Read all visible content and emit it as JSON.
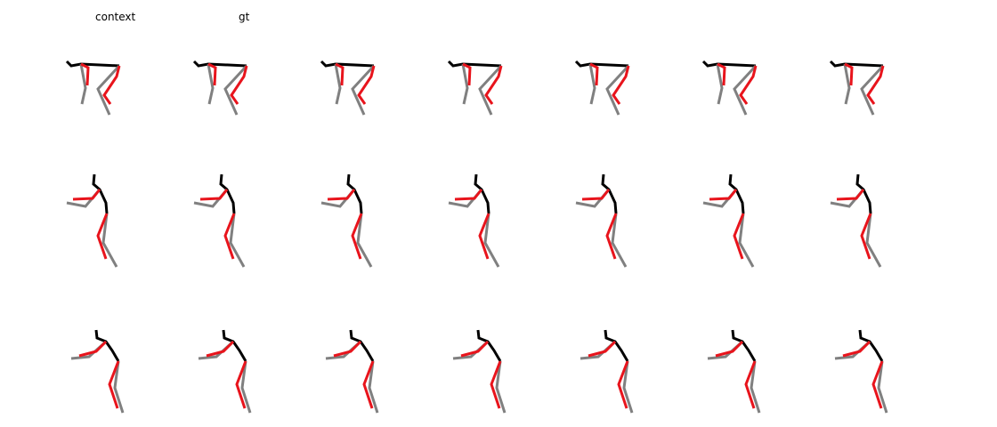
{
  "labels": {
    "context": "context",
    "gt": "gt"
  },
  "colors": {
    "spine": "#000000",
    "left_limbs": "#808080",
    "right_limbs": "#e8141c"
  }
}
